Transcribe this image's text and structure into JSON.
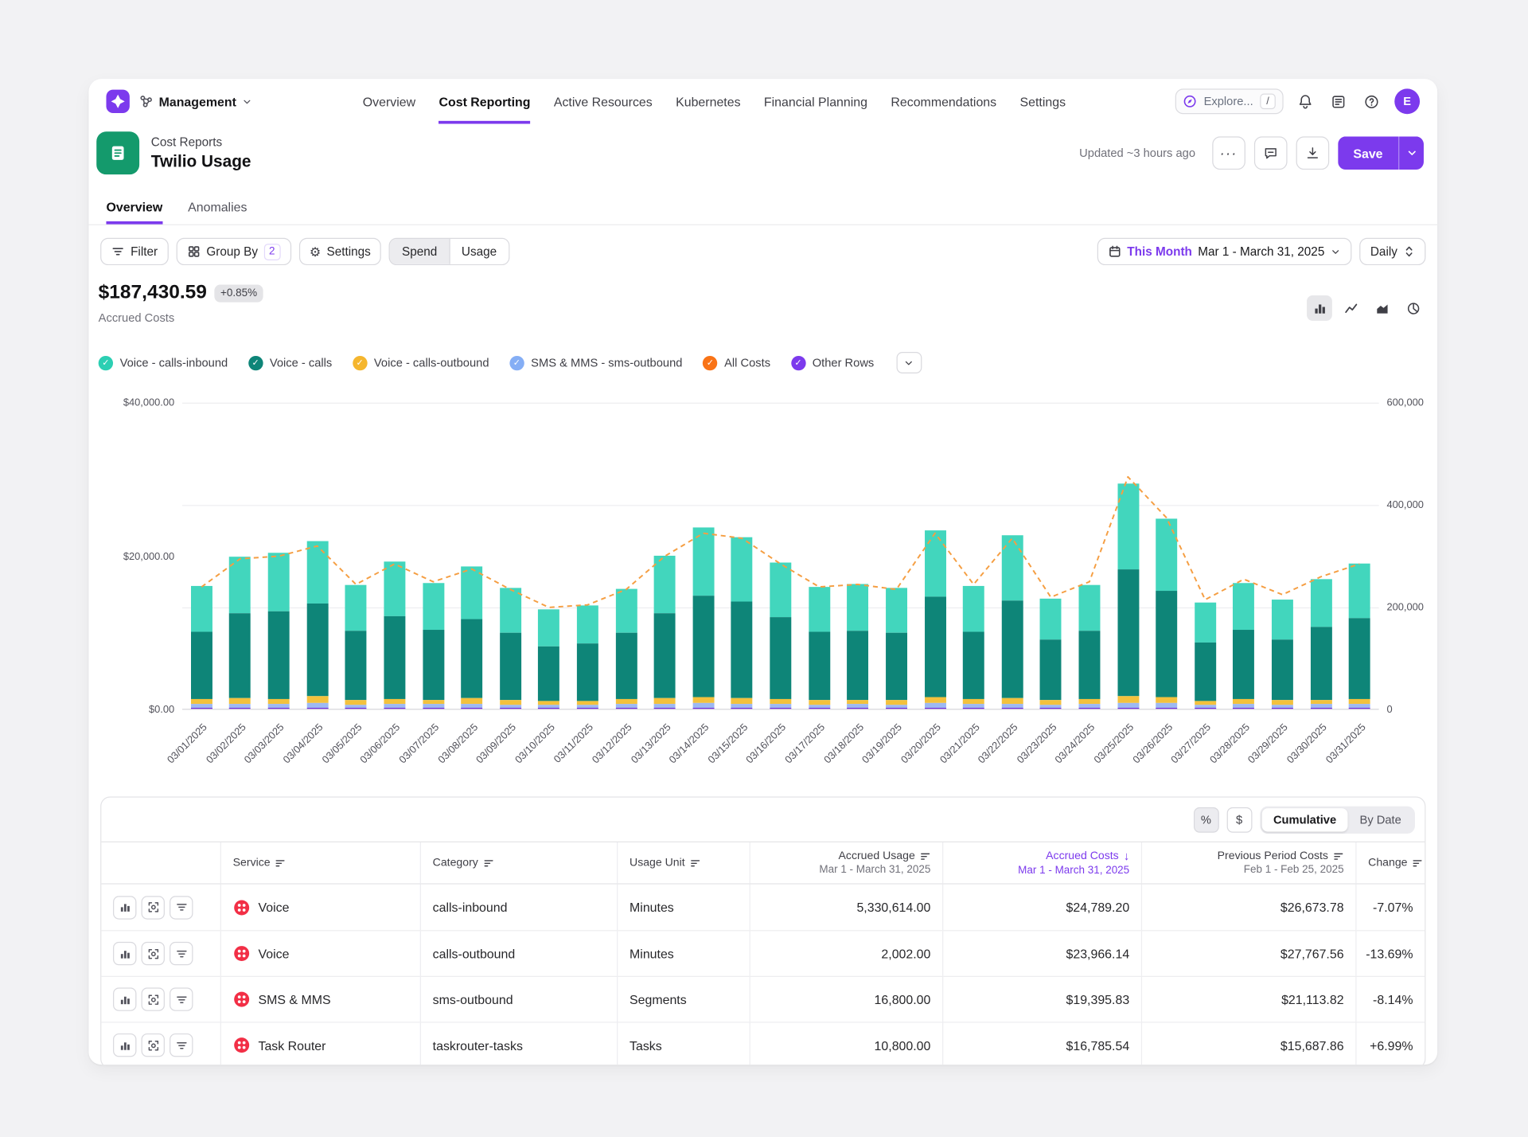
{
  "nav": {
    "workspace": "Management",
    "items": [
      {
        "label": "Overview",
        "active": false
      },
      {
        "label": "Cost Reporting",
        "active": true
      },
      {
        "label": "Active Resources",
        "active": false
      },
      {
        "label": "Kubernetes",
        "active": false
      },
      {
        "label": "Financial Planning",
        "active": false
      },
      {
        "label": "Recommendations",
        "active": false
      },
      {
        "label": "Settings",
        "active": false
      }
    ],
    "explore": {
      "label": "Explore...",
      "shortcut": "/"
    },
    "avatar_initial": "E"
  },
  "header": {
    "eyebrow": "Cost Reports",
    "title": "Twilio Usage",
    "updated": "Updated ~3 hours ago",
    "save_label": "Save"
  },
  "tabs": [
    {
      "label": "Overview",
      "active": true
    },
    {
      "label": "Anomalies",
      "active": false
    }
  ],
  "toolbar": {
    "filter": "Filter",
    "group_by": "Group By",
    "group_by_count": "2",
    "settings": "Settings",
    "spend": "Spend",
    "usage": "Usage",
    "period": "This Month",
    "date_range": "Mar 1 - March 31, 2025",
    "granularity": "Daily"
  },
  "metric": {
    "value": "$187,430.59",
    "change": "+0.85%",
    "label": "Accrued Costs"
  },
  "legend": {
    "items": [
      {
        "label": "Voice - calls-inbound",
        "color": "#2ccfb3"
      },
      {
        "label": "Voice - calls",
        "color": "#0e8578"
      },
      {
        "label": "Voice - calls-outbound",
        "color": "#f5b62e"
      },
      {
        "label": "SMS & MMS - sms-outbound",
        "color": "#85aef5"
      },
      {
        "label": "All Costs",
        "color": "#f97316"
      },
      {
        "label": "Other Rows",
        "color": "#7c3aed"
      }
    ]
  },
  "chart_data": {
    "type": "bar",
    "subtype": "stacked-bars-with-dashed-line-overlay",
    "x": [
      "03/01/2025",
      "03/02/2025",
      "03/03/2025",
      "03/04/2025",
      "03/05/2025",
      "03/06/2025",
      "03/07/2025",
      "03/08/2025",
      "03/09/2025",
      "03/10/2025",
      "03/11/2025",
      "03/12/2025",
      "03/13/2025",
      "03/14/2025",
      "03/15/2025",
      "03/16/2025",
      "03/17/2025",
      "03/18/2025",
      "03/19/2025",
      "03/20/2025",
      "03/21/2025",
      "03/22/2025",
      "03/23/2025",
      "03/24/2025",
      "03/25/2025",
      "03/26/2025",
      "03/27/2025",
      "03/28/2025",
      "03/29/2025",
      "03/30/2025",
      "03/31/2025"
    ],
    "series": [
      {
        "name": "Other Rows",
        "color": "#6d28d9",
        "values": [
          150,
          150,
          150,
          150,
          150,
          150,
          150,
          150,
          150,
          150,
          150,
          150,
          150,
          150,
          150,
          150,
          150,
          150,
          150,
          150,
          150,
          150,
          150,
          150,
          150,
          150,
          150,
          150,
          150,
          150,
          150
        ]
      },
      {
        "name": "SMS & MMS - sms-outbound",
        "color": "#9db9f2",
        "values": [
          450,
          520,
          480,
          600,
          420,
          470,
          440,
          500,
          400,
          380,
          390,
          460,
          520,
          560,
          520,
          470,
          410,
          440,
          420,
          560,
          450,
          520,
          390,
          450,
          620,
          560,
          380,
          470,
          400,
          440,
          470
        ]
      },
      {
        "name": "Voice - calls-outbound",
        "color": "#f3c13d",
        "values": [
          650,
          700,
          620,
          900,
          580,
          640,
          600,
          720,
          560,
          500,
          520,
          640,
          700,
          760,
          700,
          640,
          560,
          600,
          580,
          760,
          620,
          700,
          540,
          620,
          820,
          760,
          520,
          640,
          560,
          600,
          640
        ]
      },
      {
        "name": "Voice - calls",
        "color": "#0e8578",
        "values": [
          8850,
          11058,
          11430,
          12090,
          8970,
          10764,
          9126,
          10338,
          8814,
          7122,
          7404,
          8610,
          11118,
          13278,
          12618,
          10644,
          8868,
          9006,
          8730,
          13098,
          8868,
          12738,
          7932,
          8928,
          16626,
          13938,
          7650,
          9084,
          7854,
          9426,
          10614
        ]
      },
      {
        "name": "Voice - calls-inbound",
        "color": "#42d6bd",
        "values": [
          5900,
          7372,
          7620,
          8060,
          5980,
          7176,
          6084,
          6892,
          5876,
          4748,
          4936,
          5740,
          7412,
          8852,
          8412,
          7096,
          5912,
          6004,
          5820,
          8732,
          5912,
          8492,
          5288,
          5952,
          11084,
          9292,
          5100,
          6056,
          5236,
          6284,
          7076
        ]
      }
    ],
    "line": {
      "name": "All Costs",
      "color": "#f59e42",
      "axis": "right",
      "values": [
        240000,
        295000,
        300000,
        320000,
        245000,
        285000,
        250000,
        275000,
        235000,
        200000,
        205000,
        235000,
        300000,
        345000,
        335000,
        285000,
        240000,
        245000,
        235000,
        345000,
        245000,
        335000,
        220000,
        250000,
        455000,
        375000,
        215000,
        255000,
        225000,
        260000,
        285000
      ]
    },
    "left_axis": {
      "ticks": [
        "$40,000.00",
        "$20,000.00",
        "$0.00"
      ],
      "max": 40000
    },
    "right_axis": {
      "ticks": [
        "600,000",
        "400,000",
        "200,000",
        "0"
      ],
      "max": 600000
    },
    "grid": true,
    "legend_position": "top"
  },
  "table": {
    "controls": {
      "percent": "%",
      "dollar": "$",
      "cumulative": "Cumulative",
      "by_date": "By Date"
    },
    "columns": {
      "service": "Service",
      "category": "Category",
      "usage_unit": "Usage Unit",
      "accrued_usage_title": "Accrued Usage",
      "accrued_usage_sub": "Mar 1 - March 31, 2025",
      "accrued_costs_title": "Accrued Costs",
      "accrued_costs_sub": "Mar 1 - March 31, 2025",
      "previous_title": "Previous Period Costs",
      "previous_sub": "Feb 1 - Feb 25, 2025",
      "change": "Change"
    },
    "rows": [
      {
        "service": "Voice",
        "category": "calls-inbound",
        "unit": "Minutes",
        "usage": "5,330,614.00",
        "costs": "$24,789.20",
        "previous": "$26,673.78",
        "change": "-7.07%"
      },
      {
        "service": "Voice",
        "category": "calls-outbound",
        "unit": "Minutes",
        "usage": "2,002.00",
        "costs": "$23,966.14",
        "previous": "$27,767.56",
        "change": "-13.69%"
      },
      {
        "service": "SMS & MMS",
        "category": "sms-outbound",
        "unit": "Segments",
        "usage": "16,800.00",
        "costs": "$19,395.83",
        "previous": "$21,113.82",
        "change": "-8.14%"
      },
      {
        "service": "Task Router",
        "category": "taskrouter-tasks",
        "unit": "Tasks",
        "usage": "10,800.00",
        "costs": "$16,785.54",
        "previous": "$15,687.86",
        "change": "+6.99%"
      }
    ]
  },
  "icons": {
    "gear": "⚙",
    "check": "✓",
    "arrow_down": "↓",
    "dots": "···"
  }
}
